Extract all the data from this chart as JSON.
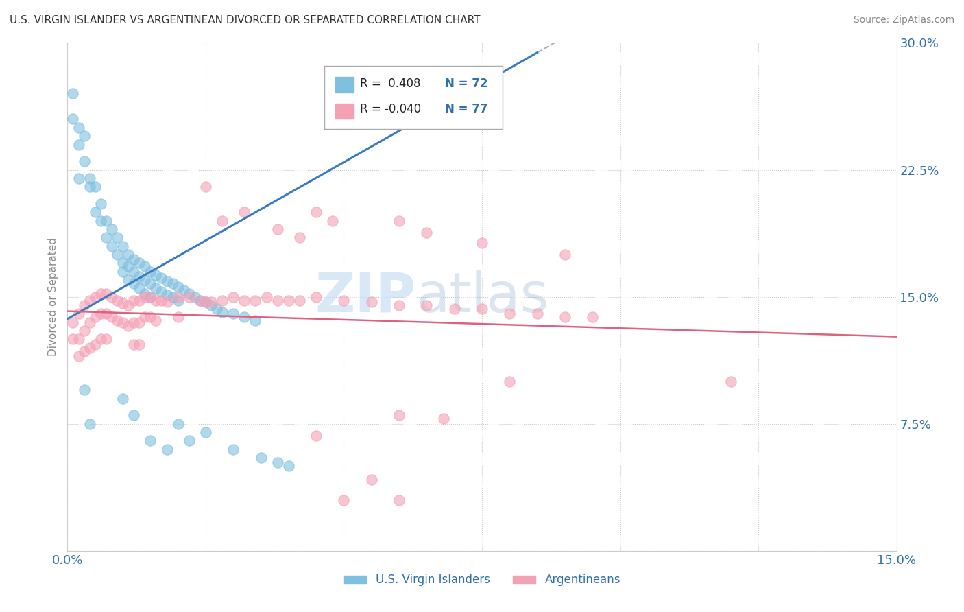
{
  "title": "U.S. VIRGIN ISLANDER VS ARGENTINEAN DIVORCED OR SEPARATED CORRELATION CHART",
  "source": "Source: ZipAtlas.com",
  "ylabel": "Divorced or Separated",
  "xlim": [
    0.0,
    0.15
  ],
  "ylim": [
    0.0,
    0.3
  ],
  "color_blue": "#7fbfdf",
  "color_pink": "#f4a0b5",
  "color_blue_line": "#3a7bbf",
  "color_pink_line": "#e06080",
  "color_blue_text": "#3070b0",
  "blue_points": [
    [
      0.001,
      0.27
    ],
    [
      0.001,
      0.255
    ],
    [
      0.002,
      0.25
    ],
    [
      0.002,
      0.24
    ],
    [
      0.002,
      0.22
    ],
    [
      0.003,
      0.245
    ],
    [
      0.003,
      0.23
    ],
    [
      0.004,
      0.22
    ],
    [
      0.004,
      0.215
    ],
    [
      0.005,
      0.215
    ],
    [
      0.005,
      0.2
    ],
    [
      0.006,
      0.205
    ],
    [
      0.006,
      0.195
    ],
    [
      0.007,
      0.195
    ],
    [
      0.007,
      0.185
    ],
    [
      0.008,
      0.19
    ],
    [
      0.008,
      0.18
    ],
    [
      0.009,
      0.185
    ],
    [
      0.009,
      0.175
    ],
    [
      0.01,
      0.18
    ],
    [
      0.01,
      0.17
    ],
    [
      0.01,
      0.165
    ],
    [
      0.011,
      0.175
    ],
    [
      0.011,
      0.168
    ],
    [
      0.011,
      0.16
    ],
    [
      0.012,
      0.172
    ],
    [
      0.012,
      0.165
    ],
    [
      0.012,
      0.158
    ],
    [
      0.013,
      0.17
    ],
    [
      0.013,
      0.162
    ],
    [
      0.013,
      0.155
    ],
    [
      0.014,
      0.168
    ],
    [
      0.014,
      0.16
    ],
    [
      0.014,
      0.152
    ],
    [
      0.015,
      0.165
    ],
    [
      0.015,
      0.158
    ],
    [
      0.015,
      0.15
    ],
    [
      0.016,
      0.163
    ],
    [
      0.016,
      0.155
    ],
    [
      0.017,
      0.161
    ],
    [
      0.017,
      0.153
    ],
    [
      0.018,
      0.159
    ],
    [
      0.018,
      0.151
    ],
    [
      0.019,
      0.158
    ],
    [
      0.019,
      0.15
    ],
    [
      0.02,
      0.156
    ],
    [
      0.02,
      0.148
    ],
    [
      0.021,
      0.154
    ],
    [
      0.022,
      0.152
    ],
    [
      0.023,
      0.15
    ],
    [
      0.024,
      0.148
    ],
    [
      0.025,
      0.147
    ],
    [
      0.026,
      0.145
    ],
    [
      0.027,
      0.143
    ],
    [
      0.028,
      0.141
    ],
    [
      0.03,
      0.14
    ],
    [
      0.032,
      0.138
    ],
    [
      0.034,
      0.136
    ],
    [
      0.003,
      0.095
    ],
    [
      0.004,
      0.075
    ],
    [
      0.01,
      0.09
    ],
    [
      0.012,
      0.08
    ],
    [
      0.015,
      0.065
    ],
    [
      0.018,
      0.06
    ],
    [
      0.02,
      0.075
    ],
    [
      0.022,
      0.065
    ],
    [
      0.025,
      0.07
    ],
    [
      0.03,
      0.06
    ],
    [
      0.035,
      0.055
    ],
    [
      0.038,
      0.052
    ],
    [
      0.04,
      0.05
    ]
  ],
  "pink_points": [
    [
      0.001,
      0.135
    ],
    [
      0.001,
      0.125
    ],
    [
      0.002,
      0.14
    ],
    [
      0.002,
      0.125
    ],
    [
      0.002,
      0.115
    ],
    [
      0.003,
      0.145
    ],
    [
      0.003,
      0.13
    ],
    [
      0.003,
      0.118
    ],
    [
      0.004,
      0.148
    ],
    [
      0.004,
      0.135
    ],
    [
      0.004,
      0.12
    ],
    [
      0.005,
      0.15
    ],
    [
      0.005,
      0.138
    ],
    [
      0.005,
      0.122
    ],
    [
      0.006,
      0.152
    ],
    [
      0.006,
      0.14
    ],
    [
      0.006,
      0.125
    ],
    [
      0.007,
      0.152
    ],
    [
      0.007,
      0.14
    ],
    [
      0.007,
      0.125
    ],
    [
      0.008,
      0.15
    ],
    [
      0.008,
      0.138
    ],
    [
      0.009,
      0.148
    ],
    [
      0.009,
      0.136
    ],
    [
      0.01,
      0.146
    ],
    [
      0.01,
      0.135
    ],
    [
      0.011,
      0.145
    ],
    [
      0.011,
      0.133
    ],
    [
      0.012,
      0.148
    ],
    [
      0.012,
      0.135
    ],
    [
      0.012,
      0.122
    ],
    [
      0.013,
      0.148
    ],
    [
      0.013,
      0.135
    ],
    [
      0.013,
      0.122
    ],
    [
      0.014,
      0.15
    ],
    [
      0.014,
      0.138
    ],
    [
      0.015,
      0.15
    ],
    [
      0.015,
      0.138
    ],
    [
      0.016,
      0.148
    ],
    [
      0.016,
      0.136
    ],
    [
      0.017,
      0.148
    ],
    [
      0.018,
      0.147
    ],
    [
      0.02,
      0.15
    ],
    [
      0.02,
      0.138
    ],
    [
      0.022,
      0.15
    ],
    [
      0.024,
      0.148
    ],
    [
      0.025,
      0.147
    ],
    [
      0.026,
      0.147
    ],
    [
      0.028,
      0.148
    ],
    [
      0.03,
      0.15
    ],
    [
      0.032,
      0.148
    ],
    [
      0.034,
      0.148
    ],
    [
      0.036,
      0.15
    ],
    [
      0.038,
      0.148
    ],
    [
      0.04,
      0.148
    ],
    [
      0.042,
      0.148
    ],
    [
      0.045,
      0.15
    ],
    [
      0.05,
      0.148
    ],
    [
      0.055,
      0.147
    ],
    [
      0.06,
      0.145
    ],
    [
      0.065,
      0.145
    ],
    [
      0.07,
      0.143
    ],
    [
      0.075,
      0.143
    ],
    [
      0.08,
      0.14
    ],
    [
      0.085,
      0.14
    ],
    [
      0.09,
      0.138
    ],
    [
      0.095,
      0.138
    ],
    [
      0.12,
      0.1
    ],
    [
      0.025,
      0.215
    ],
    [
      0.028,
      0.195
    ],
    [
      0.032,
      0.2
    ],
    [
      0.038,
      0.19
    ],
    [
      0.042,
      0.185
    ],
    [
      0.045,
      0.2
    ],
    [
      0.048,
      0.195
    ],
    [
      0.06,
      0.195
    ],
    [
      0.065,
      0.188
    ],
    [
      0.075,
      0.182
    ],
    [
      0.09,
      0.175
    ],
    [
      0.06,
      0.08
    ],
    [
      0.068,
      0.078
    ],
    [
      0.08,
      0.1
    ],
    [
      0.045,
      0.068
    ],
    [
      0.055,
      0.042
    ],
    [
      0.05,
      0.03
    ],
    [
      0.06,
      0.03
    ]
  ],
  "blue_line_slope": 1.85,
  "blue_line_intercept": 0.137,
  "pink_line_slope": -0.1,
  "pink_line_intercept": 0.1415
}
